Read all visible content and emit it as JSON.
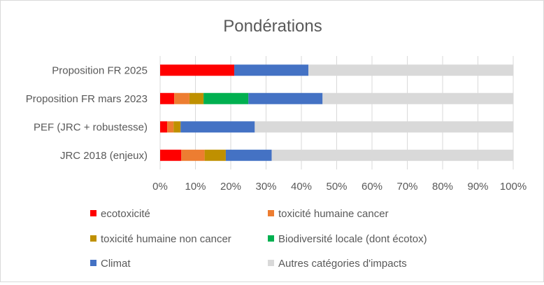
{
  "chart_data": {
    "type": "bar",
    "orientation": "horizontal",
    "stacked": "percent",
    "title": "Pondérations",
    "categories": [
      "Proposition FR 2025",
      "Proposition FR mars 2023",
      "PEF (JRC + robustesse)",
      "JRC 2018 (enjeux)"
    ],
    "x_ticks": [
      "0%",
      "10%",
      "20%",
      "30%",
      "40%",
      "50%",
      "60%",
      "70%",
      "80%",
      "90%",
      "100%"
    ],
    "xlim": [
      0,
      100
    ],
    "grid": "vertical",
    "legend_position": "bottom",
    "series": [
      {
        "name": "ecotoxicité",
        "color": "#ff0000",
        "values": [
          21,
          4,
          2,
          6
        ]
      },
      {
        "name": "toxicité humaine cancer",
        "color": "#ed7d31",
        "values": [
          0,
          4.3,
          1.8,
          6.6
        ]
      },
      {
        "name": "toxicité humaine non cancer",
        "color": "#bf9000",
        "values": [
          0,
          4,
          2,
          6
        ]
      },
      {
        "name": "Biodiversité locale (dont écotox)",
        "color": "#00b050",
        "values": [
          0,
          12.7,
          0,
          0
        ]
      },
      {
        "name": "Climat",
        "color": "#4472c4",
        "values": [
          21,
          21,
          21,
          13
        ]
      },
      {
        "name": "Autres catégories d'impacts",
        "color": "#d9d9d9",
        "values": [
          58,
          54,
          73.2,
          68.4
        ]
      }
    ]
  }
}
